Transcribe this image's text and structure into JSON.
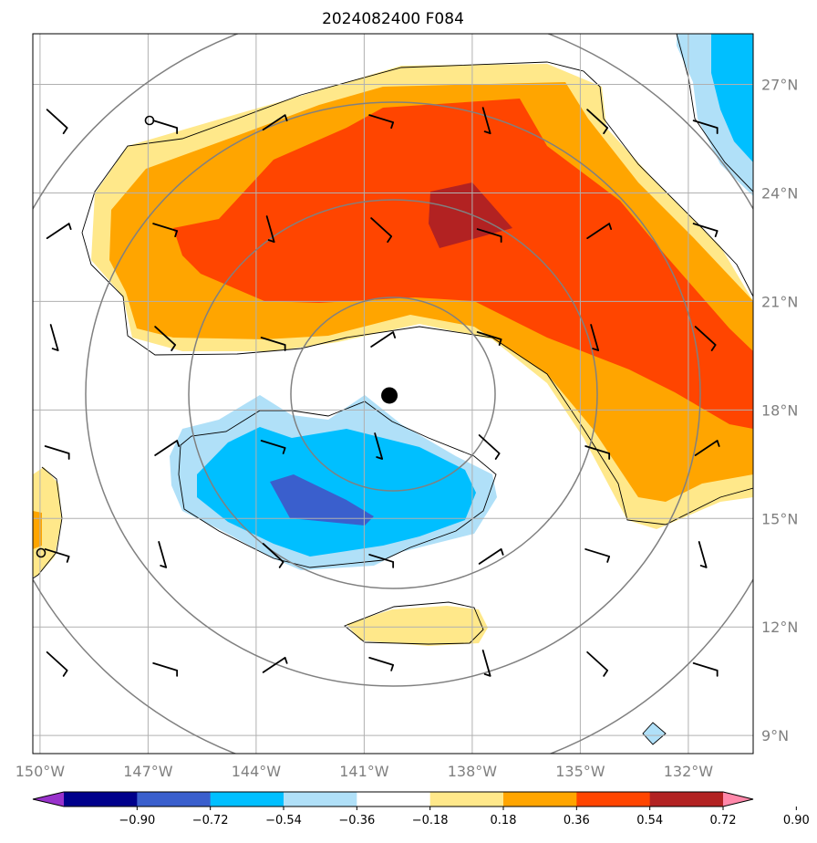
{
  "chart_data": {
    "type": "filled-contour-map",
    "title": "2024082400 F084",
    "x_ticks": [
      "150°W",
      "147°W",
      "144°W",
      "141°W",
      "138°W",
      "135°W",
      "132°W"
    ],
    "x_tick_values": [
      -150,
      -147,
      -144,
      -141,
      -138,
      -135,
      -132
    ],
    "y_ticks": [
      "9°N",
      "12°N",
      "15°N",
      "18°N",
      "21°N",
      "24°N",
      "27°N"
    ],
    "y_tick_values": [
      9,
      12,
      15,
      18,
      21,
      24,
      27
    ],
    "xlim": [
      -150.2,
      -130.2
    ],
    "ylim": [
      8.5,
      28.4
    ],
    "center_marker": {
      "lon": -140.3,
      "lat": 18.4
    },
    "colorbar": {
      "levels": [
        "-0.90",
        "-0.72",
        "-0.54",
        "-0.36",
        "-0.18",
        "0.18",
        "0.36",
        "0.54",
        "0.72",
        "0.90"
      ],
      "colors": [
        "#9932CC",
        "#00008B",
        "#3A5FCD",
        "#00BFFF",
        "#B0E0F8",
        "#FFFFFF",
        "#FFE88A",
        "#FFA500",
        "#FF4500",
        "#B22222",
        "#FF88AA"
      ],
      "extend": "both"
    },
    "wind_barb_rows_lat": [
      26,
      23,
      20,
      17,
      14,
      11
    ],
    "wind_barb_cols_lon": [
      -149.5,
      -146.5,
      -143.5,
      -140.5,
      -137.5,
      -134.5,
      -131.5
    ]
  }
}
